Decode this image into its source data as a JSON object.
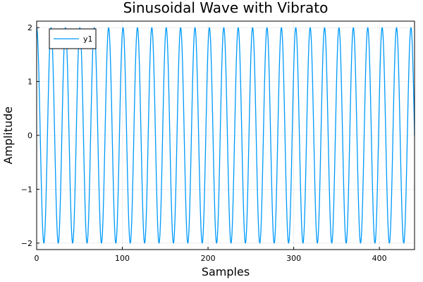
{
  "chart_data": {
    "type": "line",
    "title": "Sinusoidal Wave with Vibrato",
    "xlabel": "Samples",
    "ylabel": "Amplitude",
    "xlim": [
      0,
      441
    ],
    "ylim": [
      -2.12,
      2.12
    ],
    "xticks": [
      0,
      100,
      200,
      300,
      400
    ],
    "yticks": [
      -2,
      -1,
      0,
      1,
      2
    ],
    "ytick_labels": [
      "−2",
      "−1",
      "0",
      "1",
      "2"
    ],
    "grid": true,
    "legend": {
      "position": "top-left",
      "entries": [
        "y1"
      ]
    },
    "series": [
      {
        "name": "y1",
        "color": "#009AFA",
        "function": "2*cos(2*pi*x/16.8)",
        "x_start": 0,
        "x_end": 441,
        "amplitude": 2,
        "period_samples": 16.8
      }
    ]
  }
}
